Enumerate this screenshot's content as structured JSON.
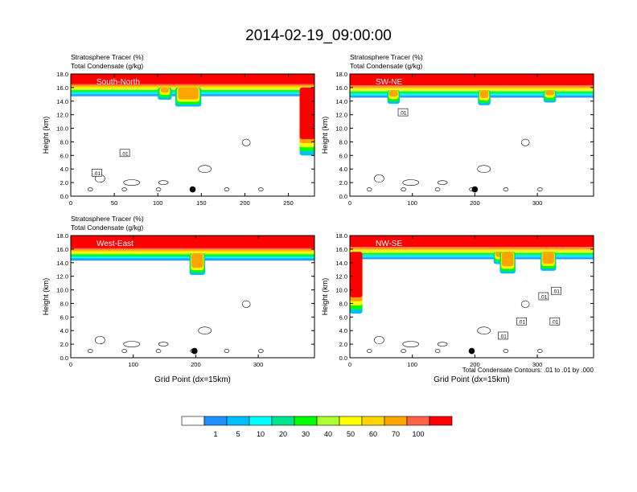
{
  "figure": {
    "title": "2014-02-19_09:00:00",
    "contour_note": "Total Condensate Contours: .01 to .01 by .000"
  },
  "colorbar": {
    "labels": [
      "1",
      "5",
      "10",
      "20",
      "30",
      "40",
      "50",
      "60",
      "70",
      "100"
    ],
    "colors": [
      "#ffffff",
      "#1e90ff",
      "#00bfff",
      "#00ffff",
      "#00e68c",
      "#00ff00",
      "#adff2f",
      "#ffff00",
      "#ffd700",
      "#ffa500",
      "#ff6347",
      "#ff0000"
    ]
  },
  "chart_data": [
    {
      "type": "heatmap",
      "panel": "South-North",
      "label1": "Stratosphere Tracer   (%)",
      "label2": "Total Condensate   (g/kg)",
      "ylabel": "Height (km)",
      "xlabel": "",
      "ylim": [
        0,
        18
      ],
      "xlim": [
        0,
        280
      ],
      "xticks": [
        0,
        50,
        100,
        150,
        200,
        250
      ],
      "yticks": [
        "0.0",
        "2.0",
        "4.0",
        "6.0",
        "8.0",
        "10.0",
        "12.0",
        "14.0",
        "16.0",
        "18.0"
      ],
      "tropopause_km": 15.8,
      "contour_level": ".01",
      "contour_labels": [
        {
          "x": 30,
          "y": 3.4,
          "text": ".01"
        },
        {
          "x": 62,
          "y": 6.3,
          "text": ".01"
        }
      ],
      "marker": {
        "x": 140,
        "y": 1.0
      },
      "tracer_features": [
        {
          "x0": 263,
          "x1": 280,
          "y0": 6.0,
          "y1": 16.0,
          "note": "intrusion"
        },
        {
          "x0": 100,
          "x1": 116,
          "y0": 14.2,
          "y1": 16.0,
          "note": "dip"
        },
        {
          "x0": 120,
          "x1": 150,
          "y0": 13.2,
          "y1": 16.0,
          "note": "dip"
        }
      ]
    },
    {
      "type": "heatmap",
      "panel": "SW-NE",
      "label1": "Stratosphere Tracer   (%)",
      "label2": "Total Condensate   (g/kg)",
      "ylabel": "Height (km)",
      "xlabel": "",
      "ylim": [
        0,
        18
      ],
      "xlim": [
        0,
        390
      ],
      "xticks": [
        0,
        100,
        200,
        300
      ],
      "yticks": [
        "0.0",
        "2.0",
        "4.0",
        "6.0",
        "8.0",
        "10.0",
        "12.0",
        "14.0",
        "16.0",
        "18.0"
      ],
      "tropopause_km": 15.6,
      "contour_level": ".01",
      "contour_labels": [
        {
          "x": 85,
          "y": 12.3,
          "text": ".01"
        }
      ],
      "marker": {
        "x": 200,
        "y": 1.0
      },
      "tracer_features": [
        {
          "x0": 60,
          "x1": 80,
          "y0": 13.6,
          "y1": 15.6,
          "note": "dip"
        },
        {
          "x0": 205,
          "x1": 225,
          "y0": 13.4,
          "y1": 15.6,
          "note": "dip"
        },
        {
          "x0": 310,
          "x1": 330,
          "y0": 13.8,
          "y1": 15.6,
          "note": "dip"
        }
      ]
    },
    {
      "type": "heatmap",
      "panel": "West-East",
      "label1": "Stratosphere Tracer   (%)",
      "label2": "Total Condensate   (g/kg)",
      "ylabel": "Height (km)",
      "xlabel": "Grid Point (dx=15km)",
      "ylim": [
        0,
        18
      ],
      "xlim": [
        0,
        390
      ],
      "xticks": [
        0,
        100,
        200,
        300
      ],
      "yticks": [
        "0.0",
        "2.0",
        "4.0",
        "6.0",
        "8.0",
        "10.0",
        "12.0",
        "14.0",
        "16.0",
        "18.0"
      ],
      "tropopause_km": 15.4,
      "contour_level": ".01",
      "contour_labels": [],
      "marker": {
        "x": 198,
        "y": 1.0
      },
      "tracer_features": [
        {
          "x0": 190,
          "x1": 215,
          "y0": 12.2,
          "y1": 15.4,
          "note": "dip"
        }
      ]
    },
    {
      "type": "heatmap",
      "panel": "NW-SE",
      "label1": "",
      "label2": "",
      "ylabel": "Height (km)",
      "xlabel": "Grid Point (dx=15km)",
      "ylim": [
        0,
        18
      ],
      "xlim": [
        0,
        390
      ],
      "xticks": [
        0,
        100,
        200,
        300
      ],
      "yticks": [
        "0.0",
        "2.0",
        "4.0",
        "6.0",
        "8.0",
        "10.0",
        "12.0",
        "14.0",
        "16.0",
        "18.0"
      ],
      "tropopause_km": 15.6,
      "contour_level": ".01",
      "contour_labels": [
        {
          "x": 310,
          "y": 9.0,
          "text": ".01"
        },
        {
          "x": 330,
          "y": 9.8,
          "text": ".01"
        },
        {
          "x": 275,
          "y": 5.3,
          "text": ".01"
        },
        {
          "x": 328,
          "y": 5.3,
          "text": ".01"
        },
        {
          "x": 245,
          "y": 3.2,
          "text": ".01"
        }
      ],
      "marker": {
        "x": 195,
        "y": 1.0
      },
      "tracer_features": [
        {
          "x0": 0,
          "x1": 20,
          "y0": 6.5,
          "y1": 15.6,
          "note": "intrusion"
        },
        {
          "x0": 230,
          "x1": 250,
          "y0": 13.8,
          "y1": 15.6,
          "note": "dip"
        },
        {
          "x0": 240,
          "x1": 265,
          "y0": 12.4,
          "y1": 15.6,
          "note": "dip"
        },
        {
          "x0": 305,
          "x1": 330,
          "y0": 12.8,
          "y1": 15.6,
          "note": "dip"
        }
      ]
    }
  ]
}
